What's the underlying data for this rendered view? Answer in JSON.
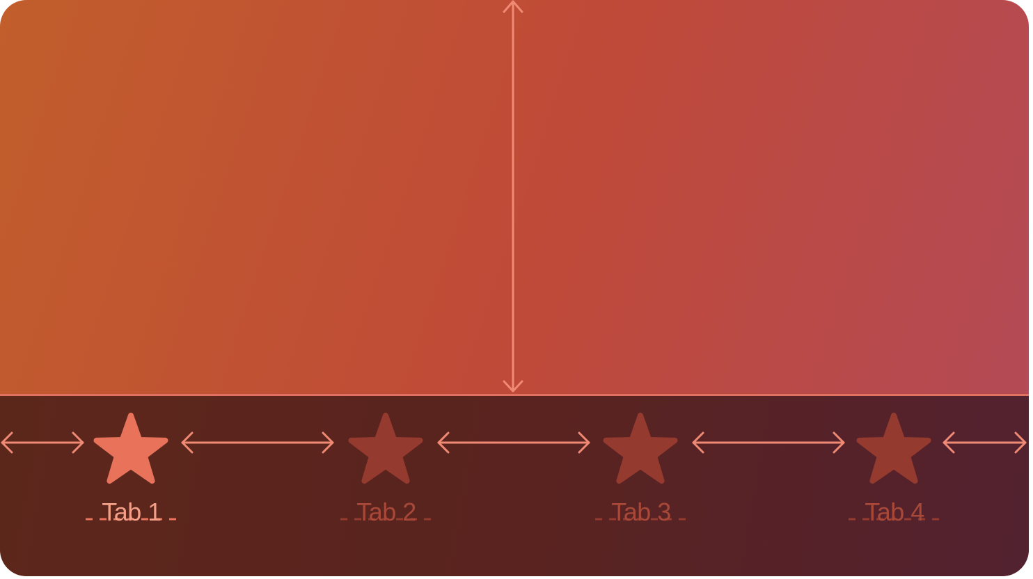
{
  "colors": {
    "content_gradient": [
      "#c15e2c",
      "#c04a38",
      "#b24a58"
    ],
    "tabbar_gradient": [
      "#5c271b",
      "#5a231f",
      "#532230"
    ],
    "tabbar_border": "#e07060",
    "measure_line": "#f08a74",
    "tab_active": "#e8735a",
    "tab_inactive": "#953a2e",
    "tab_label_active": "#f4a088",
    "tab_label_inactive": "#a84838"
  },
  "tabs": [
    {
      "label": "Tab 1",
      "icon": "star-icon",
      "active": true
    },
    {
      "label": "Tab 2",
      "icon": "star-icon",
      "active": false
    },
    {
      "label": "Tab 3",
      "icon": "star-icon",
      "active": false
    },
    {
      "label": "Tab 4",
      "icon": "star-icon",
      "active": false
    }
  ]
}
